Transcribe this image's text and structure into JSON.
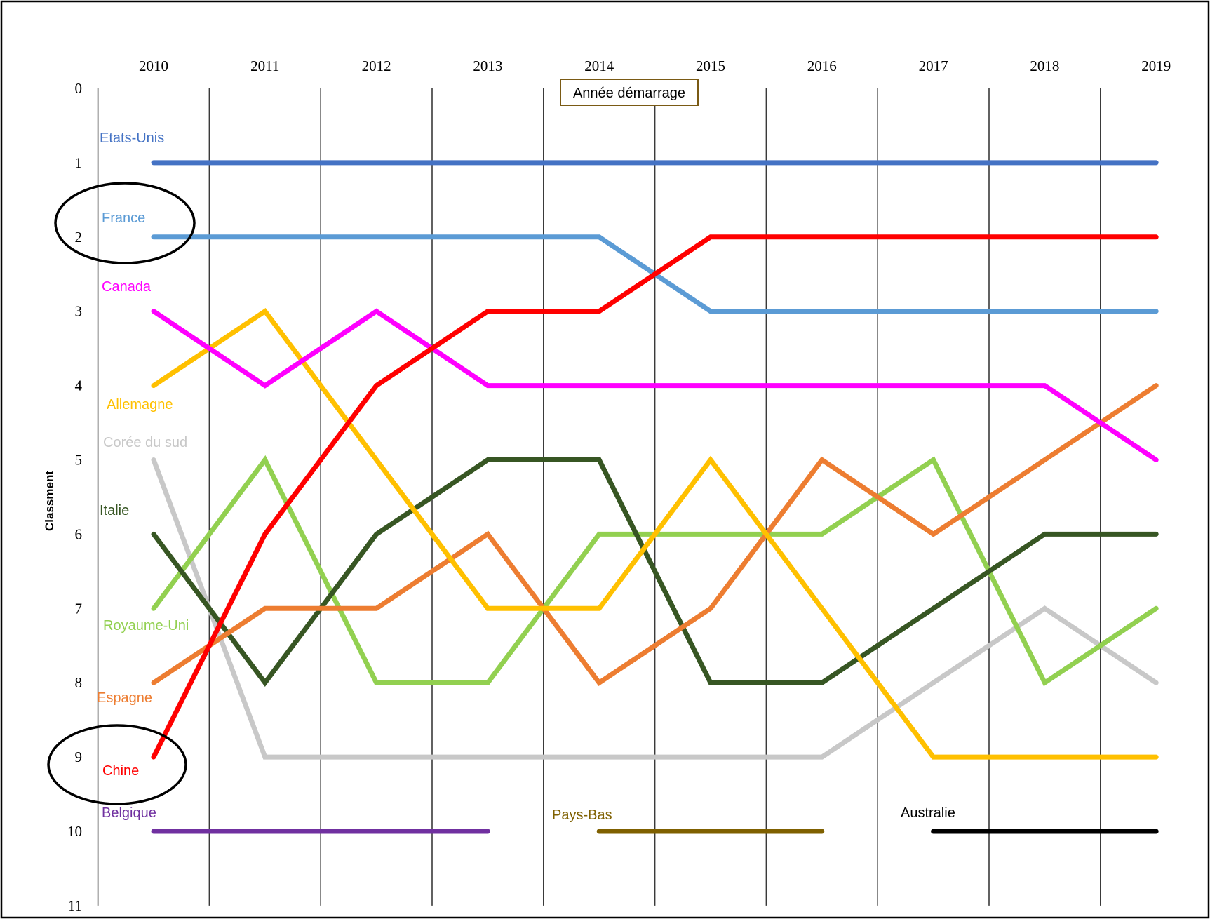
{
  "chart_data": {
    "type": "line",
    "title": "",
    "annotation": "Année démarrage",
    "xlabel": "",
    "ylabel": "Classment",
    "x": [
      2010,
      2011,
      2012,
      2013,
      2014,
      2015,
      2016,
      2017,
      2018,
      2019
    ],
    "y_ticks": [
      0,
      1,
      2,
      3,
      4,
      5,
      6,
      7,
      8,
      9,
      10,
      11
    ],
    "ylim": [
      0,
      11
    ],
    "y_inverted": true,
    "x_axis_position": "top",
    "grid": "vertical",
    "legend": "inline labels at left",
    "series": [
      {
        "name": "Etats-Unis",
        "color": "#4472C4",
        "values": [
          1,
          1,
          1,
          1,
          1,
          1,
          1,
          1,
          1,
          1
        ]
      },
      {
        "name": "France",
        "color": "#5B9BD5",
        "values": [
          2,
          2,
          2,
          2,
          2,
          3,
          3,
          3,
          3,
          3
        ]
      },
      {
        "name": "Canada",
        "color": "#FF00FF",
        "values": [
          3,
          4,
          3,
          4,
          4,
          4,
          4,
          4,
          4,
          5
        ]
      },
      {
        "name": "Allemagne",
        "color": "#FFC000",
        "values": [
          4,
          3,
          5,
          7,
          7,
          5,
          7,
          9,
          9,
          9
        ]
      },
      {
        "name": "Corée du sud",
        "color": "#C8C8C8",
        "values": [
          5,
          9,
          9,
          9,
          9,
          9,
          9,
          8,
          7,
          8
        ]
      },
      {
        "name": "Italie",
        "color": "#375623",
        "values": [
          6,
          8,
          6,
          5,
          5,
          8,
          8,
          7,
          6,
          6
        ]
      },
      {
        "name": "Royaume-Uni",
        "color": "#92D050",
        "values": [
          7,
          5,
          8,
          8,
          6,
          6,
          6,
          5,
          8,
          7
        ]
      },
      {
        "name": "Espagne",
        "color": "#ED7D31",
        "values": [
          8,
          7,
          7,
          6,
          8,
          7,
          5,
          6,
          5,
          4
        ]
      },
      {
        "name": "Chine",
        "color": "#FF0000",
        "values": [
          9,
          6,
          4,
          3,
          3,
          2,
          2,
          2,
          2,
          2
        ]
      },
      {
        "name": "Belgique",
        "color": "#7030A0",
        "values": [
          10,
          10,
          10,
          10,
          null,
          null,
          null,
          null,
          null,
          null
        ]
      },
      {
        "name": "Pays-Bas",
        "color": "#7F6000",
        "values": [
          null,
          null,
          null,
          null,
          10,
          10,
          10,
          null,
          null,
          null
        ]
      },
      {
        "name": "Australie",
        "color": "#000000",
        "values": [
          null,
          null,
          null,
          null,
          null,
          null,
          null,
          10,
          10,
          10
        ]
      }
    ],
    "highlighted": [
      "France",
      "Chine"
    ]
  }
}
